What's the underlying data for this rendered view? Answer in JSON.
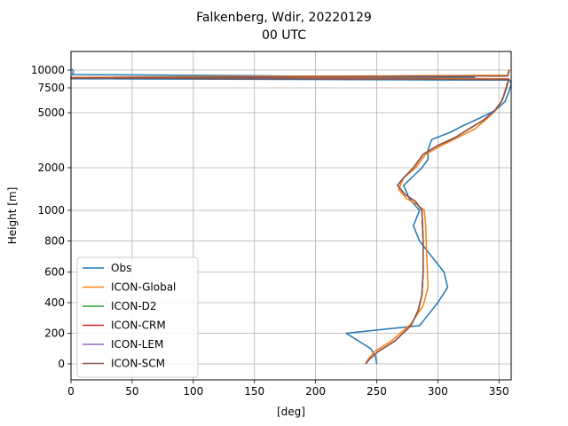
{
  "chart_data": {
    "type": "line",
    "title": "Falkenberg, Wdir, 20220129",
    "subtitle": "00 UTC",
    "xlabel": "[deg]",
    "ylabel": "Height [m]",
    "xlim": [
      0,
      360
    ],
    "x_ticks": [
      0,
      50,
      100,
      150,
      200,
      250,
      300,
      350
    ],
    "y_scale": "piecewise: linear 0-1000, log-like above",
    "y_ticks": [
      0,
      200,
      400,
      600,
      800,
      1000,
      2000,
      5000,
      7500,
      10000
    ],
    "y_tick_labels": [
      "0",
      "200",
      "400",
      "600",
      "800",
      "1000",
      "2000",
      "5000",
      "7500",
      "10000"
    ],
    "grid": true,
    "legend": "lower-left",
    "series": [
      {
        "name": "Obs",
        "color": "#1f77b4",
        "points": [
          [
            250,
            0
          ],
          [
            249,
            50
          ],
          [
            245,
            100
          ],
          [
            235,
            150
          ],
          [
            225,
            200
          ],
          [
            285,
            250
          ],
          [
            290,
            300
          ],
          [
            300,
            400
          ],
          [
            308,
            500
          ],
          [
            305,
            600
          ],
          [
            295,
            700
          ],
          [
            285,
            800
          ],
          [
            280,
            900
          ],
          [
            285,
            1000
          ],
          [
            277,
            1200
          ],
          [
            272,
            1500
          ],
          [
            287,
            2000
          ],
          [
            292,
            2300
          ],
          [
            292,
            2700
          ],
          [
            295,
            3200
          ],
          [
            310,
            3600
          ],
          [
            320,
            4000
          ],
          [
            335,
            4600
          ],
          [
            347,
            5200
          ],
          [
            355,
            6000
          ],
          [
            358,
            7000
          ],
          [
            360,
            8000
          ],
          [
            359,
            8500
          ],
          [
            0,
            8700
          ],
          [
            330,
            8900
          ],
          [
            1,
            9300
          ],
          [
            2,
            9700
          ],
          [
            1,
            10200
          ]
        ]
      },
      {
        "name": "ICON-Global",
        "color": "#ff7f0e",
        "points": [
          [
            241,
            0
          ],
          [
            243,
            30
          ],
          [
            248,
            80
          ],
          [
            262,
            150
          ],
          [
            278,
            260
          ],
          [
            288,
            380
          ],
          [
            292,
            500
          ],
          [
            291,
            700
          ],
          [
            290,
            900
          ],
          [
            289,
            1000
          ],
          [
            283,
            1100
          ],
          [
            275,
            1200
          ],
          [
            268,
            1400
          ],
          [
            272,
            1700
          ],
          [
            282,
            2000
          ],
          [
            290,
            2500
          ],
          [
            303,
            2900
          ],
          [
            316,
            3300
          ],
          [
            330,
            3800
          ],
          [
            340,
            4500
          ],
          [
            348,
            5300
          ],
          [
            353,
            6200
          ],
          [
            355,
            7200
          ],
          [
            357,
            8200
          ],
          [
            358,
            8700
          ],
          [
            0,
            8900
          ],
          [
            357,
            9200
          ],
          [
            358,
            9800
          ],
          [
            359,
            10100
          ]
        ]
      },
      {
        "name": "ICON-D2",
        "color": "#2ca02c",
        "points": [
          [
            241,
            0
          ],
          [
            244,
            30
          ],
          [
            251,
            80
          ],
          [
            265,
            150
          ],
          [
            278,
            250
          ],
          [
            284,
            350
          ],
          [
            287,
            450
          ],
          [
            288,
            600
          ],
          [
            288,
            800
          ],
          [
            287,
            1000
          ],
          [
            282,
            1150
          ],
          [
            273,
            1300
          ],
          [
            267,
            1500
          ],
          [
            272,
            1700
          ],
          [
            280,
            2000
          ],
          [
            288,
            2500
          ],
          [
            300,
            2900
          ],
          [
            314,
            3300
          ],
          [
            325,
            3800
          ],
          [
            337,
            4400
          ],
          [
            346,
            5100
          ],
          [
            352,
            6000
          ],
          [
            355,
            7000
          ],
          [
            357,
            8000
          ],
          [
            358,
            8600
          ],
          [
            0,
            8800
          ],
          [
            357,
            9100
          ],
          [
            358,
            9700
          ],
          [
            358,
            10000
          ]
        ]
      },
      {
        "name": "ICON-CRM",
        "color": "#d62728",
        "points": [
          [
            241,
            0
          ],
          [
            244,
            30
          ],
          [
            251,
            80
          ],
          [
            265,
            150
          ],
          [
            278,
            250
          ],
          [
            284,
            350
          ],
          [
            287,
            450
          ],
          [
            288,
            600
          ],
          [
            288,
            800
          ],
          [
            287,
            1000
          ],
          [
            282,
            1150
          ],
          [
            273,
            1300
          ],
          [
            267,
            1500
          ],
          [
            272,
            1700
          ],
          [
            280,
            2000
          ],
          [
            288,
            2500
          ],
          [
            300,
            2900
          ],
          [
            314,
            3300
          ],
          [
            325,
            3800
          ],
          [
            337,
            4400
          ],
          [
            346,
            5100
          ],
          [
            352,
            6000
          ],
          [
            355,
            7000
          ],
          [
            357,
            8000
          ],
          [
            358,
            8600
          ],
          [
            0,
            8800
          ],
          [
            357,
            9100
          ],
          [
            358,
            9700
          ],
          [
            358,
            10000
          ]
        ]
      },
      {
        "name": "ICON-LEM",
        "color": "#9467bd",
        "points": [
          [
            241,
            0
          ],
          [
            244,
            30
          ],
          [
            251,
            80
          ],
          [
            265,
            150
          ],
          [
            278,
            250
          ],
          [
            284,
            350
          ],
          [
            287,
            450
          ],
          [
            288,
            600
          ],
          [
            288,
            800
          ],
          [
            287,
            1000
          ],
          [
            282,
            1150
          ],
          [
            273,
            1300
          ],
          [
            267,
            1500
          ],
          [
            272,
            1700
          ],
          [
            280,
            2000
          ],
          [
            288,
            2500
          ],
          [
            300,
            2900
          ],
          [
            314,
            3300
          ],
          [
            325,
            3800
          ],
          [
            337,
            4400
          ],
          [
            346,
            5100
          ],
          [
            352,
            6000
          ],
          [
            355,
            7000
          ],
          [
            357,
            8000
          ],
          [
            358,
            8600
          ],
          [
            0,
            8800
          ],
          [
            357,
            9100
          ],
          [
            358,
            9700
          ],
          [
            358,
            10000
          ]
        ]
      },
      {
        "name": "ICON-SCM",
        "color": "#8c564b",
        "points": [
          [
            241,
            0
          ],
          [
            244,
            30
          ],
          [
            251,
            80
          ],
          [
            265,
            150
          ],
          [
            278,
            250
          ],
          [
            284,
            350
          ],
          [
            287,
            450
          ],
          [
            288,
            600
          ],
          [
            288,
            800
          ],
          [
            287,
            1000
          ],
          [
            282,
            1150
          ],
          [
            273,
            1300
          ],
          [
            267,
            1500
          ],
          [
            272,
            1700
          ],
          [
            280,
            2000
          ],
          [
            288,
            2500
          ],
          [
            300,
            2900
          ],
          [
            314,
            3300
          ],
          [
            325,
            3800
          ],
          [
            337,
            4400
          ],
          [
            346,
            5100
          ],
          [
            352,
            6000
          ],
          [
            355,
            7000
          ],
          [
            357,
            8000
          ],
          [
            358,
            8600
          ],
          [
            0,
            8800
          ],
          [
            357,
            9100
          ],
          [
            358,
            9700
          ],
          [
            358,
            10000
          ]
        ]
      }
    ]
  }
}
